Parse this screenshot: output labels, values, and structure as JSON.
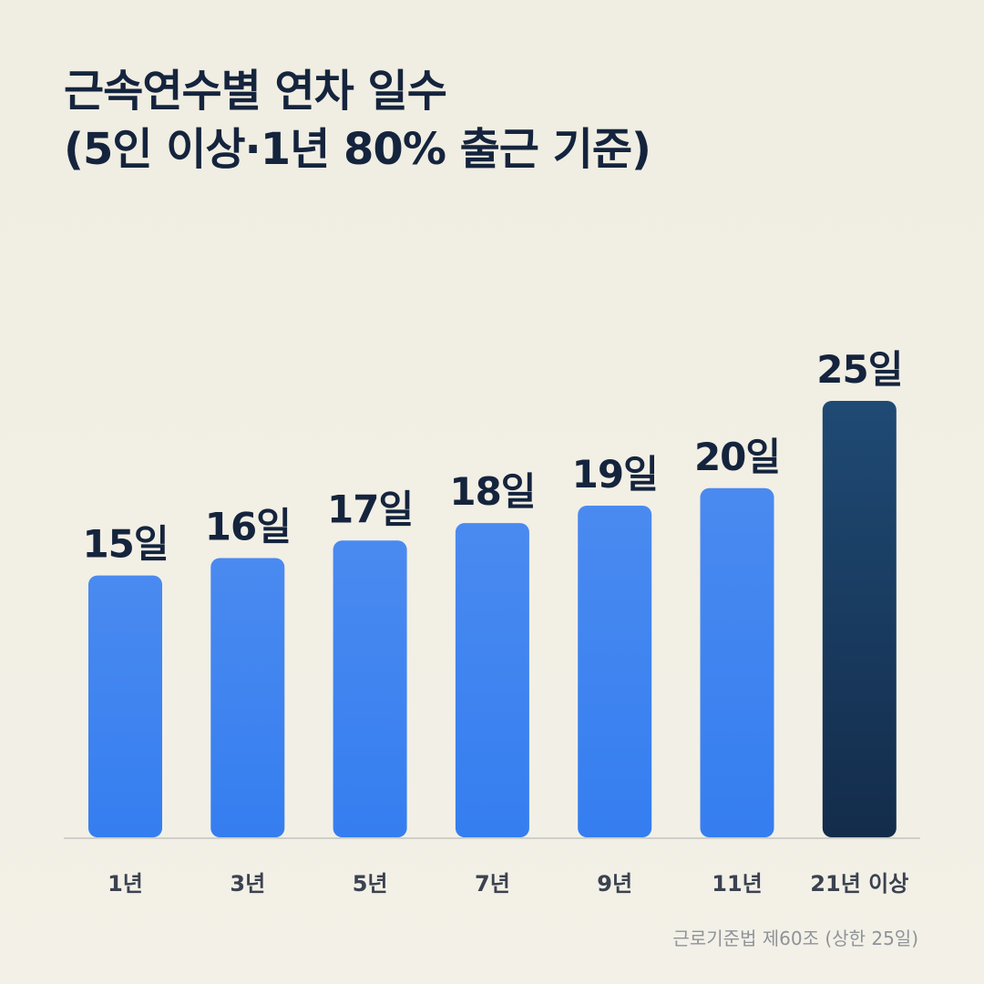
{
  "chart_data": {
    "type": "bar",
    "title": [
      "근속연수별 연차 일수",
      "(5인 이상·1년 80% 출근 기준)"
    ],
    "categories": [
      "1년",
      "3년",
      "5년",
      "7년",
      "9년",
      "11년",
      "21년 이상"
    ],
    "values": [
      15,
      16,
      17,
      18,
      19,
      20,
      25
    ],
    "value_suffix": "일",
    "highlight_index": 6,
    "ylim": [
      0,
      25
    ],
    "grid": false,
    "legend": "none",
    "colors": {
      "bar_top": "#4a8af0",
      "bar_bottom": "#357ef0",
      "highlight_top": "#1f4a74",
      "highlight_bottom": "#132c4b",
      "label": "#15243d",
      "axis": "#cfcfc8"
    },
    "source": "근로기준법 제60조 (상한 25일)"
  }
}
